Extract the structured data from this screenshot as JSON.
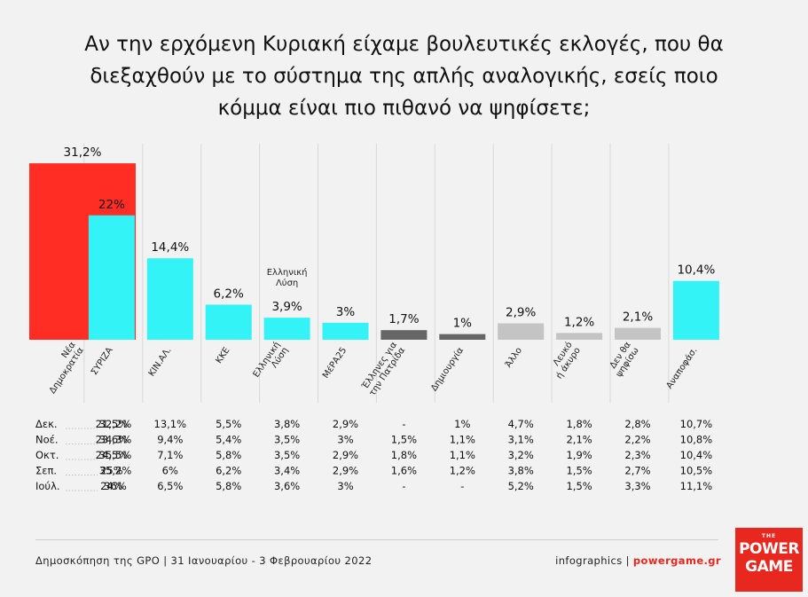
{
  "title_lines": [
    "Αν την ερχόμενη Κυριακή είχαμε βουλευτικές εκλογές, που θα",
    "διεξαχθούν με το σύστημα της απλής αναλογικής, εσείς ποιο",
    "κόμμα είναι πιο πιθανό να ψηφίσετε;"
  ],
  "colors": {
    "nd": "#ff2d24",
    "cyan": "#33f3f6",
    "dark_gray": "#666666",
    "light_gray": "#c4c4c4",
    "accent": "#e8271f"
  },
  "chart_data": {
    "type": "bar",
    "title": "Αν την ερχόμενη Κυριακή είχαμε βουλευτικές εκλογές, που θα διεξαχθούν με το σύστημα της απλής αναλογικής, εσείς ποιο κόμμα είναι πιο πιθανό να ψηφίσετε;",
    "categories": [
      "Νέα Δημοκρατία",
      "ΣΥΡΙΖΑ",
      "ΚΙΝ.ΑΛ.",
      "ΚΚΕ",
      "Ελληνική Λύση",
      "ΜέΡΑ25",
      "Έλληνες για την Πατρίδα",
      "Δημιουργία",
      "Άλλο",
      "Λευκό ή άκυρο",
      "Δεν θα ψηφίσω",
      "Αναποφάσ."
    ],
    "values": [
      31.2,
      22,
      14.4,
      6.2,
      3.9,
      3,
      1.7,
      1,
      2.9,
      1.2,
      2.1,
      10.4
    ],
    "value_labels": [
      "31,2%",
      "22%",
      "14,4%",
      "6,2%",
      "3,9%",
      "3%",
      "1,7%",
      "1%",
      "2,9%",
      "1,2%",
      "2,1%",
      "10,4%"
    ],
    "category_label_lines": [
      [
        "Νέα",
        "Δημοκρατία"
      ],
      [
        "ΣΥΡΙΖΑ"
      ],
      [
        "ΚΙΝ.ΑΛ."
      ],
      [
        "ΚΚΕ"
      ],
      [
        "Ελληνική",
        "Λύση"
      ],
      [
        "ΜέΡΑ25"
      ],
      [
        "Έλληνες για",
        "την Πατρίδα"
      ],
      [
        "Δημιουργία"
      ],
      [
        "Άλλο"
      ],
      [
        "Λευκό",
        "ή άκυρο"
      ],
      [
        "Δεν θα",
        "ψηφίσω"
      ],
      [
        "Αναποφάσ."
      ]
    ],
    "bar_color_keys": [
      "nd",
      "cyan",
      "cyan",
      "cyan",
      "cyan",
      "cyan",
      "dark_gray",
      "dark_gray",
      "light_gray",
      "light_gray",
      "light_gray",
      "cyan"
    ],
    "annotation": "Ελληνική Λύση",
    "history": {
      "months": [
        "Δεκ.",
        "Νοέ.",
        "Οκτ.",
        "Σεπ.",
        "Ιούλ."
      ],
      "rows": [
        [
          "32,2%",
          "21,5%",
          "13,1%",
          "5,5%",
          "3,8%",
          "2,9%",
          "-",
          "1%",
          "4,7%",
          "1,8%",
          "2,8%",
          "10,7%"
        ],
        [
          "34,3%",
          "23,6%",
          "9,4%",
          "5,4%",
          "3,5%",
          "3%",
          "1,5%",
          "1,1%",
          "3,1%",
          "2,1%",
          "2,2%",
          "10,8%"
        ],
        [
          "35,5%",
          "24,5%",
          "7,1%",
          "5,8%",
          "3,5%",
          "2,9%",
          "1,8%",
          "1,1%",
          "3,2%",
          "1,9%",
          "2,3%",
          "10,4%"
        ],
        [
          "35,2%",
          "25%",
          "6%",
          "6,2%",
          "3,4%",
          "2,9%",
          "1,6%",
          "1,2%",
          "3,8%",
          "1,5%",
          "2,7%",
          "10,5%"
        ],
        [
          "36%",
          "24%",
          "6,5%",
          "5,8%",
          "3,6%",
          "3%",
          "-",
          "-",
          "5,2%",
          "1,5%",
          "3,3%",
          "11,1%"
        ]
      ]
    }
  },
  "footer": {
    "source": "Δημοσκόπηση της GPO | 31 Ιανουαρίου - 3 Φεβρουαρίου 2022",
    "infographics": "infographics",
    "separator": "|",
    "site": "powergame.gr"
  },
  "logo": {
    "the": "THE",
    "word1": "POWER",
    "word2": "GAME"
  }
}
